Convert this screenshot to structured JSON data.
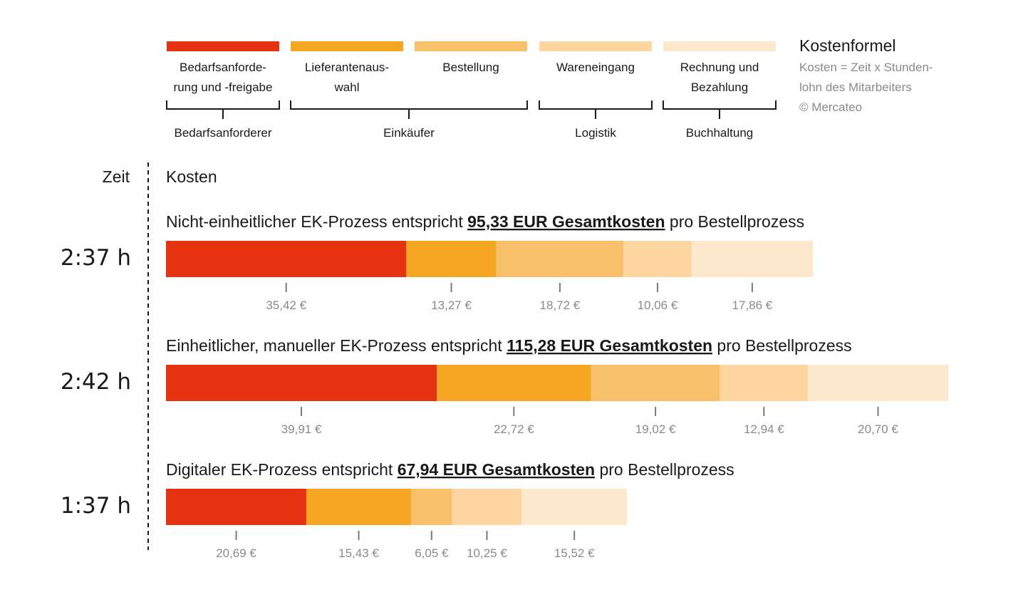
{
  "chart_data": {
    "type": "bar",
    "orientation": "horizontal-stacked",
    "stages": [
      {
        "name": "Bedarfsanforderung und -freigabe",
        "color": "#e63312"
      },
      {
        "name": "Lieferantenauswahl",
        "color": "#f5a623"
      },
      {
        "name": "Bestellung",
        "color": "#f8c06b"
      },
      {
        "name": "Wareneingang",
        "color": "#fcd69e"
      },
      {
        "name": "Rechnung und Bezahlung",
        "color": "#fde8cc"
      }
    ],
    "legend_labels": [
      [
        "Bedarfsanforde-",
        "rung und -freigabe"
      ],
      [
        "Lieferantenaus-",
        "wahl"
      ],
      [
        "Bestellung"
      ],
      [
        "Wareneingang"
      ],
      [
        "Rechnung und",
        "Bezahlung"
      ]
    ],
    "groups": [
      {
        "label": "Bedarfsanforderer",
        "stages": [
          0
        ]
      },
      {
        "label": "Einkäufer",
        "stages": [
          1,
          2
        ]
      },
      {
        "label": "Logistik",
        "stages": [
          3
        ]
      },
      {
        "label": "Buchhaltung",
        "stages": [
          4
        ]
      }
    ],
    "formula": {
      "title": "Kostenformel",
      "lines": [
        "Kosten = Zeit x Stunden-",
        "lohn des Mitarbeiters",
        "© Mercateo"
      ]
    },
    "axis_time_label": "Zeit",
    "axis_cost_label": "Kosten",
    "unit": "EUR",
    "series": [
      {
        "time": "2:37 h",
        "title_prefix": "Nicht-einheitlicher EK-Prozess entspricht ",
        "total_label": "95,33 EUR Gesamtkosten",
        "title_suffix": " pro Bestellprozess",
        "total": 95.33,
        "values": [
          35.42,
          13.27,
          18.72,
          10.06,
          17.86
        ],
        "value_labels": [
          "35,42 €",
          "13,27 €",
          "18,72 €",
          "10,06 €",
          "17,86 €"
        ]
      },
      {
        "time": "2:42 h",
        "title_prefix": "Einheitlicher, manueller EK-Prozess entspricht ",
        "total_label": "115,28 EUR Gesamtkosten",
        "title_suffix": " pro Bestellprozess",
        "total": 115.28,
        "values": [
          39.91,
          22.72,
          19.02,
          12.94,
          20.7
        ],
        "value_labels": [
          "39,91 €",
          "22,72 €",
          "19,02 €",
          "12,94 €",
          "20,70 €"
        ]
      },
      {
        "time": "1:37 h",
        "title_prefix": "Digitaler EK-Prozess entspricht ",
        "total_label": "67,94 EUR Gesamtkosten",
        "title_suffix": " pro Bestellprozess",
        "total": 67.94,
        "values": [
          20.69,
          15.43,
          6.05,
          10.25,
          15.52
        ],
        "value_labels": [
          "20,69 €",
          "15,43 €",
          "6,05 €",
          "10,25 €",
          "15,52 €"
        ]
      }
    ]
  }
}
